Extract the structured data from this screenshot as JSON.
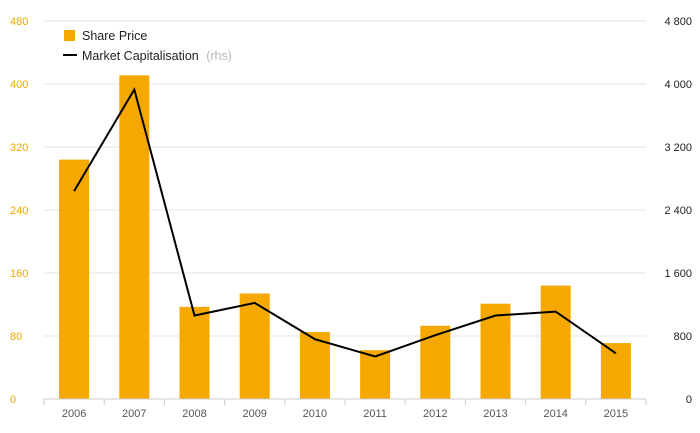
{
  "chart_data": {
    "type": "bar",
    "categories": [
      "2006",
      "2007",
      "2008",
      "2009",
      "2010",
      "2011",
      "2012",
      "2013",
      "2014",
      "2015"
    ],
    "series": [
      {
        "name": "Share Price",
        "type": "bar",
        "axis": "left",
        "color": "#f5a800",
        "values": [
          304,
          411,
          117,
          134,
          85,
          62,
          93,
          121,
          144,
          71
        ]
      },
      {
        "name": "Market Capitalisation",
        "name_suffix": "(rhs)",
        "type": "line",
        "axis": "right",
        "color": "#000000",
        "values": [
          2640,
          3930,
          1060,
          1220,
          760,
          540,
          810,
          1060,
          1110,
          580
        ]
      }
    ],
    "y_left": {
      "ylim": [
        0,
        480
      ],
      "ticks": [
        "0",
        "80",
        "160",
        "240",
        "320",
        "400",
        "480"
      ],
      "color": "#f5a800"
    },
    "y_right": {
      "ylim": [
        0,
        4800
      ],
      "ticks": [
        "0",
        "800",
        "1 600",
        "2 400",
        "3 200",
        "4 000",
        "4 800"
      ],
      "color": "#222222"
    },
    "grid": true,
    "legend": "top-left"
  }
}
